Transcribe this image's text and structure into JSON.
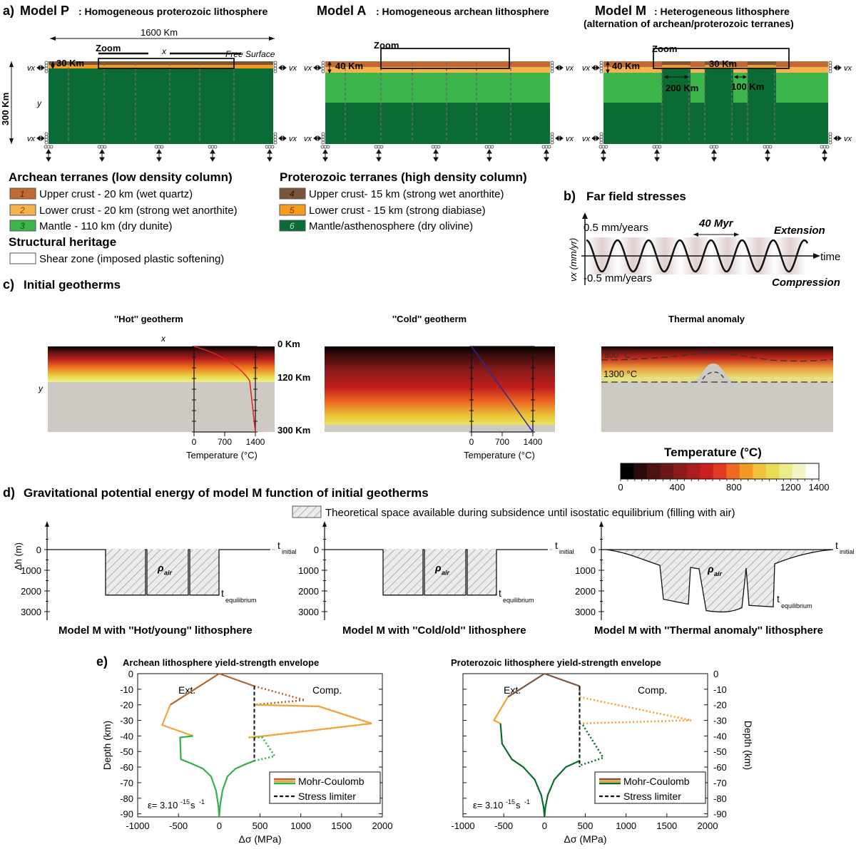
{
  "panel_a": {
    "letter": "a)",
    "models": [
      {
        "name": "Model P",
        "desc": ": Homogeneous proterozoic lithosphere"
      },
      {
        "name": "Model A",
        "desc": ": Homogeneous archean lithosphere"
      },
      {
        "name": "Model M",
        "desc": ": Heterogeneous lithosphere",
        "desc2": "(alternation of archean/proterozoic terranes)"
      }
    ],
    "width_label": "1600 Km",
    "depth_label": "300 Km",
    "zoom_label": "Zoom",
    "x_label": "x",
    "y_label": "y",
    "free_surface": "Free Surface",
    "vx_label": "vx",
    "crust_p": "30 Km",
    "crust_a": "40 Km",
    "crust_m_a": "40 Km",
    "crust_m_p": "30 Km",
    "block_200": "200 Km",
    "block_100": "100 Km",
    "colors": {
      "arch_upper": "#c06a35",
      "arch_lower": "#f6b24c",
      "arch_mantle": "#3cb54a",
      "prot_upper": "#7a553b",
      "prot_lower": "#f59b1e",
      "prot_mantle": "#0a6b35"
    }
  },
  "legend": {
    "archean_title": "Archean terranes (low density column)",
    "archean": [
      {
        "num": "1",
        "label": "Upper crust - 20 km (wet quartz)"
      },
      {
        "num": "2",
        "label": "Lower crust - 20 km (strong wet anorthite)"
      },
      {
        "num": "3",
        "label": "Mantle - 110 km (dry dunite)"
      }
    ],
    "proterozoic_title": "Proterozoic terranes (high density column)",
    "proterozoic": [
      {
        "num": "4",
        "label": "Upper crust- 15 km (strong wet anorthite)"
      },
      {
        "num": "5",
        "label": "Lower crust - 15 km (strong diabiase)"
      },
      {
        "num": "6",
        "label": "Mantle/asthenosphere (dry olivine)"
      }
    ],
    "heritage_title": "Structural heritage",
    "heritage_item": "Shear zone (imposed plastic softening)"
  },
  "panel_b": {
    "letter": "b)",
    "title": "Far field stresses",
    "ylabel": "vx (mm/yr)",
    "top_label": "0.5 mm/years",
    "bottom_label": "-0.5 mm/years",
    "period_label": "40 Myr",
    "time_label": "time",
    "extension": "Extension",
    "compression": "Compression"
  },
  "panel_c": {
    "letter": "c)",
    "title": "Initial geotherms",
    "hot_title": "''Hot'' geotherm",
    "cold_title": "''Cold'' geotherm",
    "anomaly_title": "Thermal anomaly",
    "depth_labels": [
      "0 Km",
      "120 Km",
      "300 Km"
    ],
    "x_label": "x",
    "y_label": "y",
    "temp_ticks": [
      "0",
      "700",
      "1400"
    ],
    "temp_axis": "Temperature (°C)",
    "iso_upper": "800 °C",
    "iso_1300": "1300 °C",
    "colorbar_title": "Temperature (°C)",
    "colorbar_ticks": [
      "0",
      "400",
      "800",
      "1200",
      "1400"
    ],
    "colorbar_colors": [
      "#000000",
      "#2a0a0a",
      "#4a1414",
      "#6b1717",
      "#8c1a1a",
      "#ad1c1c",
      "#cc2020",
      "#e03a20",
      "#ee6a22",
      "#f39a24",
      "#f0c23a",
      "#e9dc55",
      "#ecec8a",
      "#f5f5c4",
      "#ffffff"
    ]
  },
  "panel_d": {
    "letter": "d)",
    "title": "Gravitational potential energy of model M function of initial geotherms",
    "legend": "Theoretical space available during subsidence until isostatic equilibrium (filling with air)",
    "ylabel": "Δh (m)",
    "yticks": [
      "0",
      "1000",
      "2000",
      "3000"
    ],
    "rho": "ρ",
    "rho_sub": "air",
    "t_initial": "t",
    "t_initial_sub": "initial",
    "t_eq": "t",
    "t_eq_sub": "equilibrium",
    "captions": [
      "Model M with ''Hot/young'' lithosphere",
      "Model M with ''Cold/old'' lithosphere",
      "Model M with ''Thermal anomaly'' lithosphere"
    ]
  },
  "panel_e": {
    "letter": "e)",
    "archean_title": "Archean lithosphere yield-strength envelope",
    "proterozoic_title": "Proterozoic lithosphere yield-strength envelope",
    "ext": "Ext.",
    "comp": "Comp.",
    "ylabel": "Depth (km)",
    "xlabel": "Δσ (MPa)",
    "xticks": [
      "-1000",
      "-500",
      "0",
      "500",
      "1000",
      "1500",
      "2000"
    ],
    "yticks": [
      "0",
      "-10",
      "-20",
      "-30",
      "-40",
      "-50",
      "-60",
      "-70",
      "-80",
      "-90"
    ],
    "legend_mc": "Mohr-Coulomb",
    "legend_sl": "Stress limiter",
    "strain": "ε= 3.10",
    "strain_exp": "-15",
    "strain_unit": " s",
    "strain_unit_exp": "-1"
  },
  "chart_data": [
    {
      "type": "line",
      "title": "Archean lithosphere yield-strength envelope",
      "xlabel": "Δσ (MPa)",
      "ylabel": "Depth (km)",
      "xlim": [
        -1000,
        2000
      ],
      "ylim": [
        -92,
        0
      ],
      "series": [
        {
          "name": "Mohr-Coulomb",
          "layer": "upper crust",
          "color": "#b0642e",
          "ext": [
            [
              0,
              0
            ],
            [
              -600,
              -20
            ]
          ],
          "comp": [
            [
              0,
              0
            ],
            [
              430,
              -8
            ]
          ],
          "comp_dotted": [
            [
              430,
              -8
            ],
            [
              1050,
              -17
            ],
            [
              430,
              -20
            ]
          ]
        },
        {
          "name": "Mohr-Coulomb",
          "layer": "lower crust",
          "color": "#f3a43c",
          "ext": [
            [
              -600,
              -20
            ],
            [
              -700,
              -33
            ],
            [
              -320,
              -40
            ]
          ],
          "comp": [
            [
              430,
              -20
            ],
            [
              1220,
              -21
            ],
            [
              1870,
              -32
            ],
            [
              560,
              -40
            ],
            [
              360,
              -41
            ]
          ],
          "comp_dotted": [
            [
              430,
              -20
            ],
            [
              1220,
              -21
            ],
            [
              1870,
              -32
            ],
            [
              560,
              -40
            ],
            [
              360,
              -41
            ]
          ]
        },
        {
          "name": "Mohr-Coulomb",
          "layer": "mantle",
          "color": "#35b04a",
          "ext": [
            [
              -320,
              -40
            ],
            [
              -480,
              -41
            ],
            [
              -470,
              -55
            ],
            [
              -330,
              -58
            ],
            [
              -200,
              -61
            ],
            [
              -100,
              -66
            ],
            [
              -40,
              -75
            ],
            [
              -10,
              -85
            ],
            [
              0,
              -92
            ]
          ],
          "comp": [
            [
              0,
              -92
            ],
            [
              10,
              -85
            ],
            [
              40,
              -75
            ],
            [
              100,
              -66
            ],
            [
              200,
              -61
            ],
            [
              330,
              -58
            ],
            [
              430,
              -56
            ]
          ],
          "comp_dotted": [
            [
              430,
              -41
            ],
            [
              530,
              -41
            ],
            [
              680,
              -53
            ],
            [
              430,
              -56
            ]
          ]
        },
        {
          "name": "Stress limiter",
          "points": [
            [
              430,
              -8
            ],
            [
              430,
              -56
            ]
          ]
        }
      ]
    },
    {
      "type": "line",
      "title": "Proterozoic lithosphere yield-strength envelope",
      "xlabel": "Δσ (MPa)",
      "ylabel": "Depth (km)",
      "xlim": [
        -1000,
        2000
      ],
      "ylim": [
        -92,
        0
      ],
      "series": [
        {
          "name": "Mohr-Coulomb",
          "layer": "upper crust",
          "color": "#7a553b",
          "ext": [
            [
              0,
              0
            ],
            [
              -450,
              -15
            ]
          ],
          "comp": [
            [
              0,
              0
            ],
            [
              430,
              -8
            ]
          ],
          "comp_dotted": [
            [
              430,
              -8
            ],
            [
              430,
              -15
            ]
          ]
        },
        {
          "name": "Mohr-Coulomb",
          "layer": "lower crust",
          "color": "#f5a02a",
          "ext": [
            [
              -450,
              -15
            ],
            [
              -620,
              -30
            ],
            [
              -540,
              -32
            ]
          ],
          "comp_dotted": [
            [
              430,
              -15
            ],
            [
              1800,
              -30
            ],
            [
              440,
              -32
            ],
            [
              430,
              -32
            ]
          ]
        },
        {
          "name": "Mohr-Coulomb",
          "layer": "mantle",
          "color": "#0c6b2c",
          "ext": [
            [
              -540,
              -32
            ],
            [
              -520,
              -45
            ],
            [
              -400,
              -55
            ],
            [
              -260,
              -60
            ],
            [
              -120,
              -68
            ],
            [
              -40,
              -78
            ],
            [
              -10,
              -86
            ],
            [
              0,
              -92
            ]
          ],
          "comp": [
            [
              0,
              -92
            ],
            [
              10,
              -86
            ],
            [
              40,
              -78
            ],
            [
              120,
              -68
            ],
            [
              260,
              -60
            ],
            [
              430,
              -56
            ]
          ],
          "comp_dotted": [
            [
              430,
              -32
            ],
            [
              470,
              -33
            ],
            [
              720,
              -54
            ],
            [
              430,
              -59
            ]
          ]
        },
        {
          "name": "Stress limiter",
          "points": [
            [
              430,
              -8
            ],
            [
              430,
              -60
            ]
          ]
        }
      ]
    },
    {
      "type": "line",
      "title": "Model M with ''Hot/young'' lithosphere",
      "ylabel": "Δh (m)",
      "ylim": [
        3200,
        -300
      ],
      "series": [
        {
          "name": "t_equilibrium",
          "basin_depths_m": [
            2200,
            2200,
            2200
          ]
        }
      ]
    },
    {
      "type": "line",
      "title": "Model M with ''Cold/old'' lithosphere",
      "ylabel": "Δh (m)",
      "ylim": [
        3200,
        -300
      ],
      "series": [
        {
          "name": "t_equilibrium",
          "basin_depths_m": [
            2200,
            2200,
            2200
          ]
        }
      ]
    },
    {
      "type": "line",
      "title": "Model M with ''Thermal anomaly'' lithosphere",
      "ylabel": "Δh (m)",
      "ylim": [
        3200,
        -300
      ],
      "series": [
        {
          "name": "t_equilibrium",
          "basin_depths_m": [
            2400,
            2950,
            2700
          ]
        }
      ]
    }
  ]
}
